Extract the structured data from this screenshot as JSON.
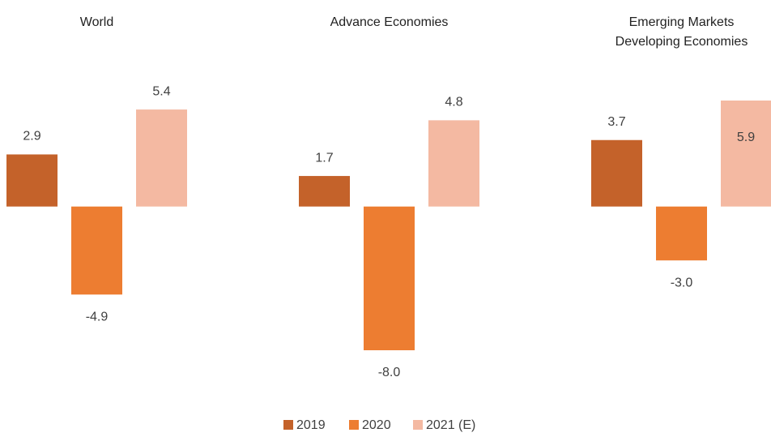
{
  "chart_data": {
    "type": "bar",
    "categories": [
      "World",
      "Advance Economies",
      "Emerging Markets\nDeveloping Economies"
    ],
    "series": [
      {
        "name": "2019",
        "color": "#c4622a",
        "values": [
          2.9,
          1.7,
          3.7
        ],
        "value_labels": [
          "2.9",
          "1.7",
          "3.7"
        ]
      },
      {
        "name": "2020",
        "color": "#ed7d31",
        "values": [
          -4.9,
          -8.0,
          -3.0
        ],
        "value_labels": [
          "-4.9",
          "-8.0",
          "-3.0"
        ]
      },
      {
        "name": "2021 (E)",
        "color": "#f4b9a2",
        "values": [
          5.4,
          4.8,
          5.9
        ],
        "value_labels": [
          "5.4",
          "4.8",
          "5.9"
        ]
      }
    ],
    "legend": "bottom"
  }
}
